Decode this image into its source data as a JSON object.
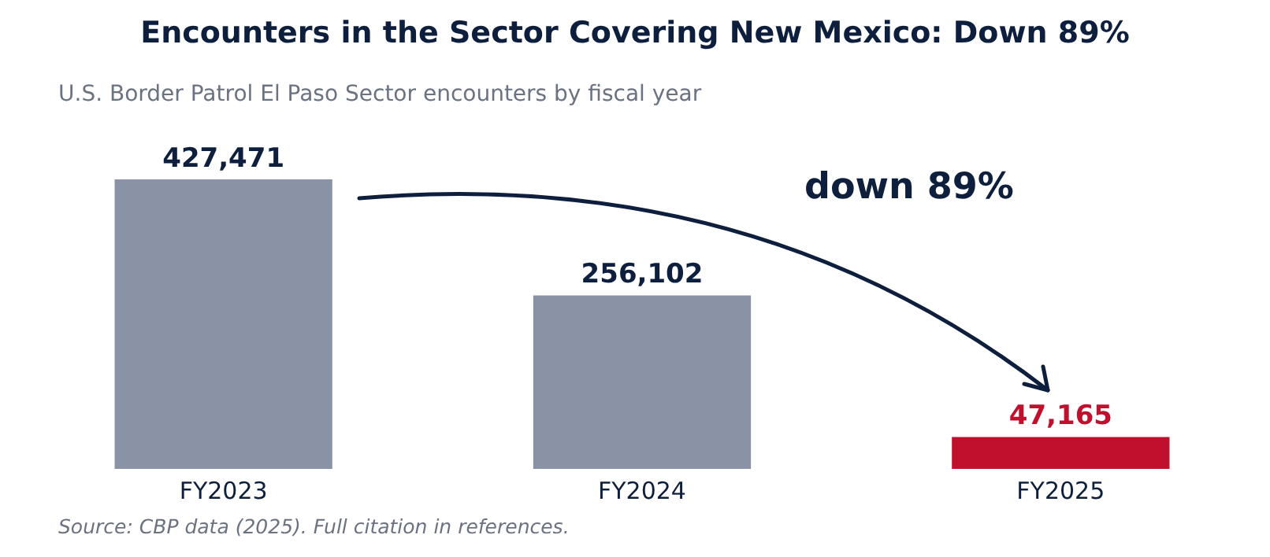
{
  "chart_data": {
    "type": "bar",
    "title": "Encounters in the Sector Covering New Mexico: Down 89%",
    "subtitle": "U.S. Border Patrol El Paso Sector encounters by fiscal year",
    "categories": [
      "FY2023",
      "FY2024",
      "FY2025"
    ],
    "values": [
      427471,
      256102,
      47165
    ],
    "colors": [
      "#8a93a6",
      "#8a93a6",
      "#c0102e"
    ],
    "value_labels": [
      "427,471",
      "256,102",
      "47,165"
    ],
    "grid": false,
    "legend": false,
    "tick_labels": "x",
    "annotations": [
      "down 89%",
      "Source: CBP data (2025). Full citation in references."
    ]
  }
}
